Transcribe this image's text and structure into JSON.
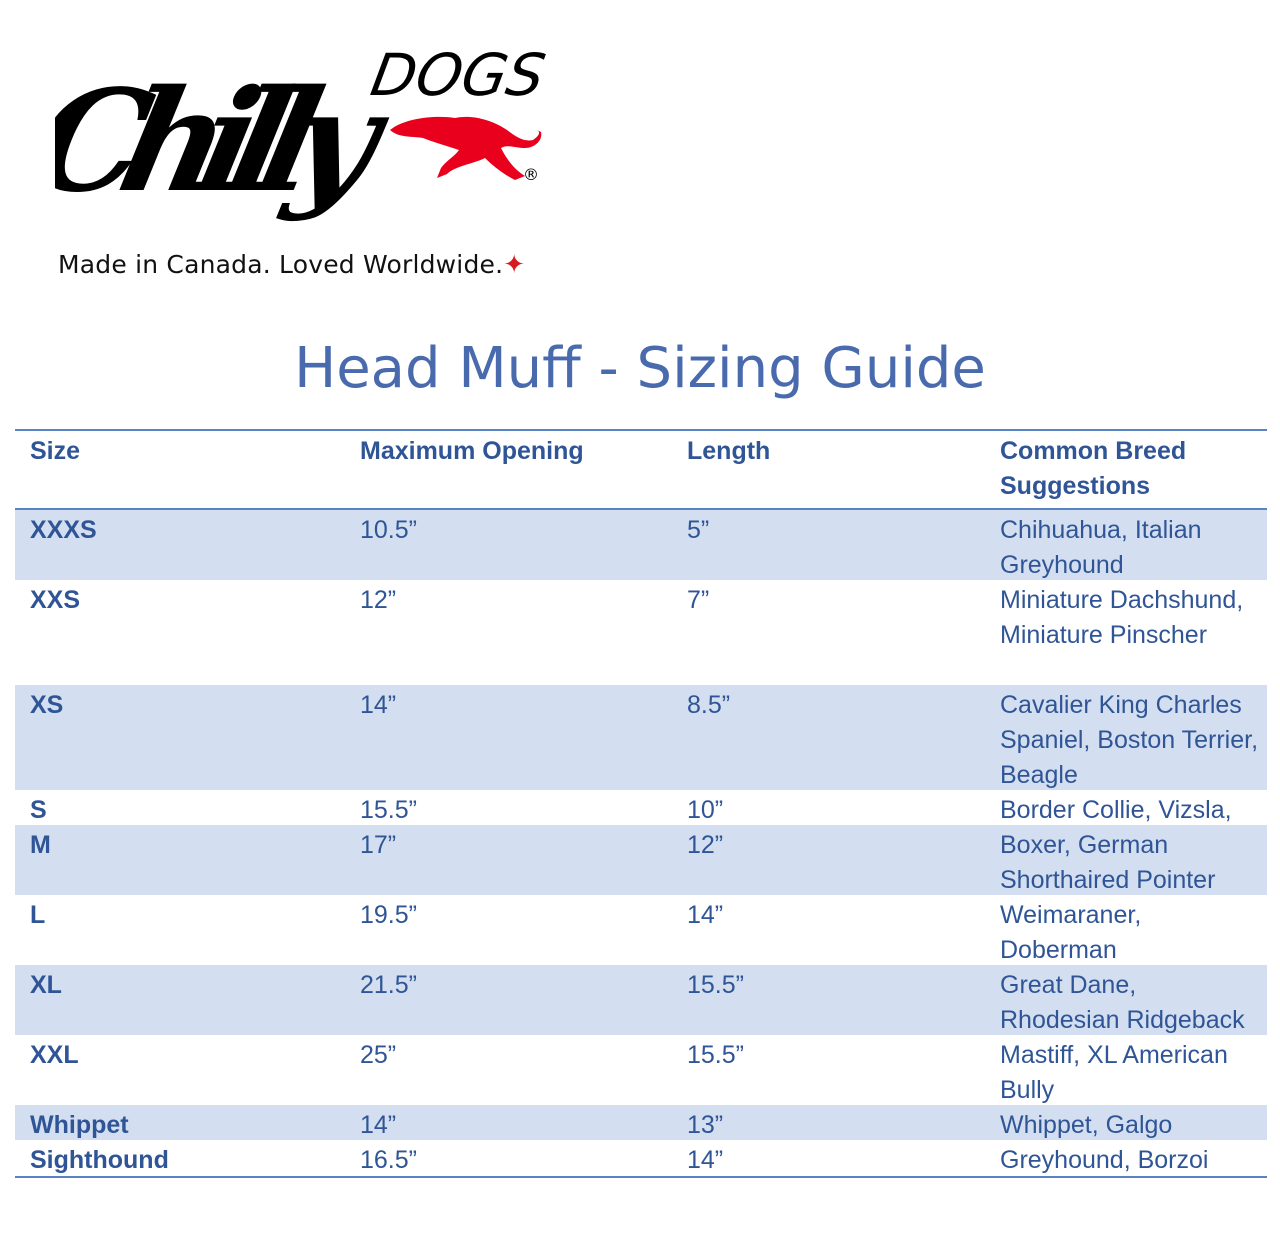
{
  "logo": {
    "brand_main": "Chilly",
    "brand_sub": "DOGS",
    "registered": "®",
    "tagline": "Made in Canada. Loved Worldwide.",
    "colors": {
      "text": "#000000",
      "dog": "#e8001c",
      "leaf": "#d71920"
    }
  },
  "title": "Head Muff - Sizing Guide",
  "colors": {
    "title": "#4a6aae",
    "text": "#2f5596",
    "row_shade": "#d3dff0",
    "rule": "#5b82c2"
  },
  "table": {
    "headers": [
      "Size",
      "Maximum Opening",
      "Length",
      "Common Breed Suggestions"
    ],
    "rows": [
      {
        "size": "XXXS",
        "opening": "10.5”",
        "length": "5”",
        "breeds": "Chihuahua, Italian Greyhound"
      },
      {
        "size": "XXS",
        "opening": "12”",
        "length": "7”",
        "breeds": "Miniature Dachshund, Miniature Pinscher"
      },
      {
        "size": "XS",
        "opening": "14”",
        "length": "8.5”",
        "breeds": "Cavalier King Charles Spaniel, Boston Terrier, Beagle"
      },
      {
        "size": "S",
        "opening": "15.5”",
        "length": "10”",
        "breeds": "Border Collie, Vizsla,"
      },
      {
        "size": "M",
        "opening": "17”",
        "length": "12”",
        "breeds": "Boxer, German Shorthaired Pointer"
      },
      {
        "size": "L",
        "opening": "19.5”",
        "length": "14”",
        "breeds": "Weimaraner, Doberman"
      },
      {
        "size": "XL",
        "opening": "21.5”",
        "length": "15.5”",
        "breeds": "Great Dane, Rhodesian Ridgeback"
      },
      {
        "size": "XXL",
        "opening": "25”",
        "length": "15.5”",
        "breeds": "Mastiff, XL American Bully"
      },
      {
        "size": "Whippet",
        "opening": "14”",
        "length": "13”",
        "breeds": "Whippet, Galgo"
      },
      {
        "size": "Sighthound",
        "opening": "16.5”",
        "length": "14”",
        "breeds": "Greyhound, Borzoi"
      }
    ]
  }
}
